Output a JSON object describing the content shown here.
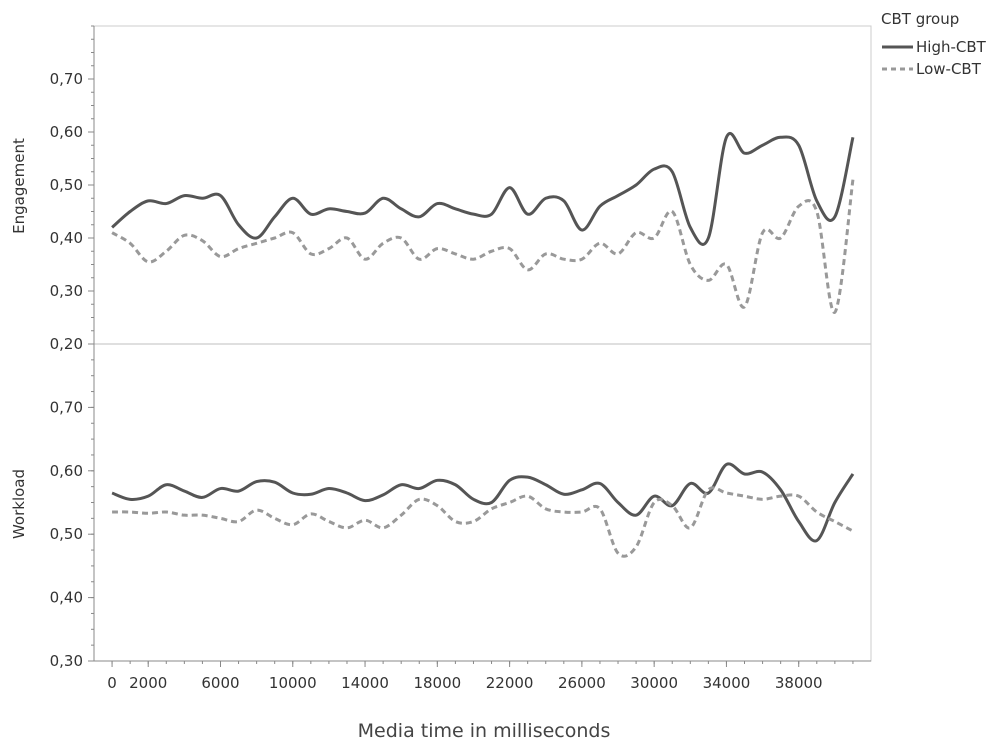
{
  "chart_data": {
    "type": "line",
    "xlabel": "Media time in milliseconds",
    "x_ticks": [
      0,
      2000,
      6000,
      10000,
      14000,
      18000,
      22000,
      26000,
      30000,
      34000,
      38000
    ],
    "x_tick_labels": [
      "0",
      "2000",
      "6000",
      "10000",
      "14000",
      "18000",
      "22000",
      "26000",
      "30000",
      "34000",
      "38000"
    ],
    "xlim": [
      -1000,
      42000
    ],
    "legend": {
      "title": "CBT group",
      "position": "top-right",
      "entries": [
        {
          "name": "High-CBT",
          "style": "solid"
        },
        {
          "name": "Low-CBT",
          "style": "dashed"
        }
      ]
    },
    "colors": {
      "high": "#555555",
      "low": "#999999",
      "axis": "#888888",
      "frame": "#cccccc"
    },
    "panels": [
      {
        "ylabel": "Engagement",
        "ylim": [
          0.2,
          0.8
        ],
        "yticks": [
          0.2,
          0.3,
          0.4,
          0.5,
          0.6,
          0.7
        ],
        "ytick_labels": [
          "0,20",
          "0,30",
          "0,40",
          "0,50",
          "0,60",
          "0,70"
        ],
        "series": [
          {
            "name": "High-CBT",
            "style": "solid",
            "x": [
              0,
              1000,
              2000,
              3000,
              4000,
              5000,
              6000,
              7000,
              8000,
              9000,
              10000,
              11000,
              12000,
              13000,
              14000,
              15000,
              16000,
              17000,
              18000,
              19000,
              20000,
              21000,
              22000,
              23000,
              24000,
              25000,
              26000,
              27000,
              28000,
              29000,
              30000,
              31000,
              32000,
              33000,
              34000,
              35000,
              36000,
              37000,
              38000,
              39000,
              40000,
              41000
            ],
            "values": [
              0.42,
              0.45,
              0.47,
              0.465,
              0.48,
              0.475,
              0.48,
              0.425,
              0.4,
              0.44,
              0.475,
              0.445,
              0.455,
              0.45,
              0.447,
              0.475,
              0.455,
              0.44,
              0.465,
              0.455,
              0.445,
              0.445,
              0.495,
              0.445,
              0.475,
              0.47,
              0.415,
              0.46,
              0.48,
              0.5,
              0.53,
              0.525,
              0.42,
              0.4,
              0.59,
              0.56,
              0.575,
              0.59,
              0.575,
              0.47,
              0.44,
              0.59
            ]
          },
          {
            "name": "Low-CBT",
            "style": "dashed",
            "x": [
              0,
              1000,
              2000,
              3000,
              4000,
              5000,
              6000,
              7000,
              8000,
              9000,
              10000,
              11000,
              12000,
              13000,
              14000,
              15000,
              16000,
              17000,
              18000,
              19000,
              20000,
              21000,
              22000,
              23000,
              24000,
              25000,
              26000,
              27000,
              28000,
              29000,
              30000,
              31000,
              32000,
              33000,
              34000,
              35000,
              36000,
              37000,
              38000,
              39000,
              40000,
              41000
            ],
            "values": [
              0.41,
              0.39,
              0.355,
              0.375,
              0.405,
              0.395,
              0.365,
              0.38,
              0.39,
              0.4,
              0.41,
              0.37,
              0.38,
              0.4,
              0.36,
              0.39,
              0.4,
              0.36,
              0.38,
              0.37,
              0.36,
              0.375,
              0.38,
              0.34,
              0.37,
              0.36,
              0.36,
              0.39,
              0.37,
              0.41,
              0.4,
              0.45,
              0.35,
              0.32,
              0.35,
              0.27,
              0.41,
              0.4,
              0.46,
              0.45,
              0.26,
              0.51
            ]
          }
        ]
      },
      {
        "ylabel": "Workload",
        "ylim": [
          0.3,
          0.8
        ],
        "yticks": [
          0.3,
          0.4,
          0.5,
          0.6,
          0.7
        ],
        "ytick_labels": [
          "0,30",
          "0,40",
          "0,50",
          "0,60",
          "0,70"
        ],
        "series": [
          {
            "name": "High-CBT",
            "style": "solid",
            "x": [
              0,
              1000,
              2000,
              3000,
              4000,
              5000,
              6000,
              7000,
              8000,
              9000,
              10000,
              11000,
              12000,
              13000,
              14000,
              15000,
              16000,
              17000,
              18000,
              19000,
              20000,
              21000,
              22000,
              23000,
              24000,
              25000,
              26000,
              27000,
              28000,
              29000,
              30000,
              31000,
              32000,
              33000,
              34000,
              35000,
              36000,
              37000,
              38000,
              39000,
              40000,
              41000
            ],
            "values": [
              0.565,
              0.555,
              0.56,
              0.578,
              0.568,
              0.558,
              0.572,
              0.568,
              0.583,
              0.582,
              0.565,
              0.563,
              0.572,
              0.565,
              0.553,
              0.562,
              0.578,
              0.572,
              0.585,
              0.578,
              0.555,
              0.55,
              0.585,
              0.59,
              0.578,
              0.563,
              0.57,
              0.58,
              0.55,
              0.53,
              0.56,
              0.545,
              0.58,
              0.565,
              0.61,
              0.595,
              0.598,
              0.57,
              0.52,
              0.49,
              0.55,
              0.595
            ]
          },
          {
            "name": "Low-CBT",
            "style": "dashed",
            "x": [
              0,
              1000,
              2000,
              3000,
              4000,
              5000,
              6000,
              7000,
              8000,
              9000,
              10000,
              11000,
              12000,
              13000,
              14000,
              15000,
              16000,
              17000,
              18000,
              19000,
              20000,
              21000,
              22000,
              23000,
              24000,
              25000,
              26000,
              27000,
              28000,
              29000,
              30000,
              31000,
              32000,
              33000,
              34000,
              35000,
              36000,
              37000,
              38000,
              39000,
              40000,
              41000
            ],
            "values": [
              0.535,
              0.535,
              0.533,
              0.535,
              0.53,
              0.53,
              0.525,
              0.52,
              0.538,
              0.525,
              0.515,
              0.532,
              0.52,
              0.51,
              0.522,
              0.51,
              0.53,
              0.555,
              0.545,
              0.52,
              0.52,
              0.54,
              0.55,
              0.56,
              0.54,
              0.535,
              0.535,
              0.54,
              0.47,
              0.48,
              0.55,
              0.545,
              0.51,
              0.57,
              0.565,
              0.56,
              0.555,
              0.56,
              0.56,
              0.535,
              0.52,
              0.505
            ]
          }
        ]
      }
    ]
  }
}
